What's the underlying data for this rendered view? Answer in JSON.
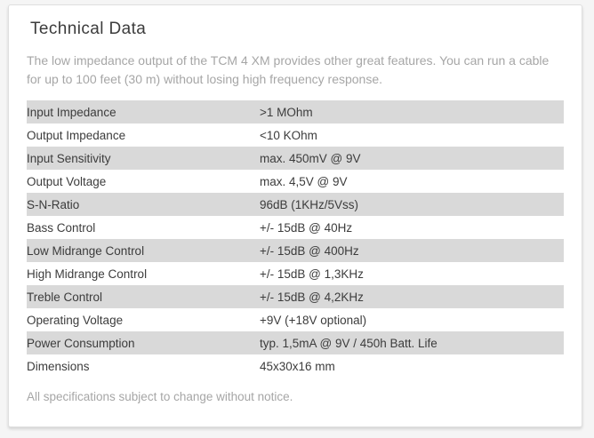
{
  "card": {
    "title": "Technical Data",
    "description": "The low impedance output of the TCM 4 XM provides other great features. You can run a cable for up to 100 feet (30 m) without losing high frequency response.",
    "footnote": "All specifications subject to change without notice."
  },
  "spec_table": {
    "rows": [
      {
        "label": "Input Impedance",
        "value": ">1 MOhm"
      },
      {
        "label": "Output Impedance",
        "value": "<10 KOhm"
      },
      {
        "label": "Input Sensitivity",
        "value": "max. 450mV @ 9V"
      },
      {
        "label": "Output Voltage",
        "value": "max. 4,5V @ 9V"
      },
      {
        "label": "S-N-Ratio",
        "value": "96dB (1KHz/5Vss)"
      },
      {
        "label": "Bass Control",
        "value": "+/- 15dB @ 40Hz"
      },
      {
        "label": "Low Midrange Control",
        "value": "+/- 15dB @ 400Hz"
      },
      {
        "label": "High Midrange Control",
        "value": "+/- 15dB @ 1,3KHz"
      },
      {
        "label": "Treble Control",
        "value": "+/- 15dB @ 4,2KHz"
      },
      {
        "label": "Operating Voltage",
        "value": "+9V (+18V optional)"
      },
      {
        "label": "Power Consumption",
        "value": "typ. 1,5mA @ 9V / 450h Batt. Life"
      },
      {
        "label": "Dimensions",
        "value": "45x30x16 mm"
      }
    ]
  },
  "colors": {
    "page_background": "#f5f5f5",
    "card_background": "#ffffff",
    "card_border": "#dfdfdf",
    "heading_text": "#3c3c3c",
    "body_text": "#3c3c3c",
    "muted_text": "#a6a6a6",
    "row_stripe": "#d9d9d9"
  }
}
